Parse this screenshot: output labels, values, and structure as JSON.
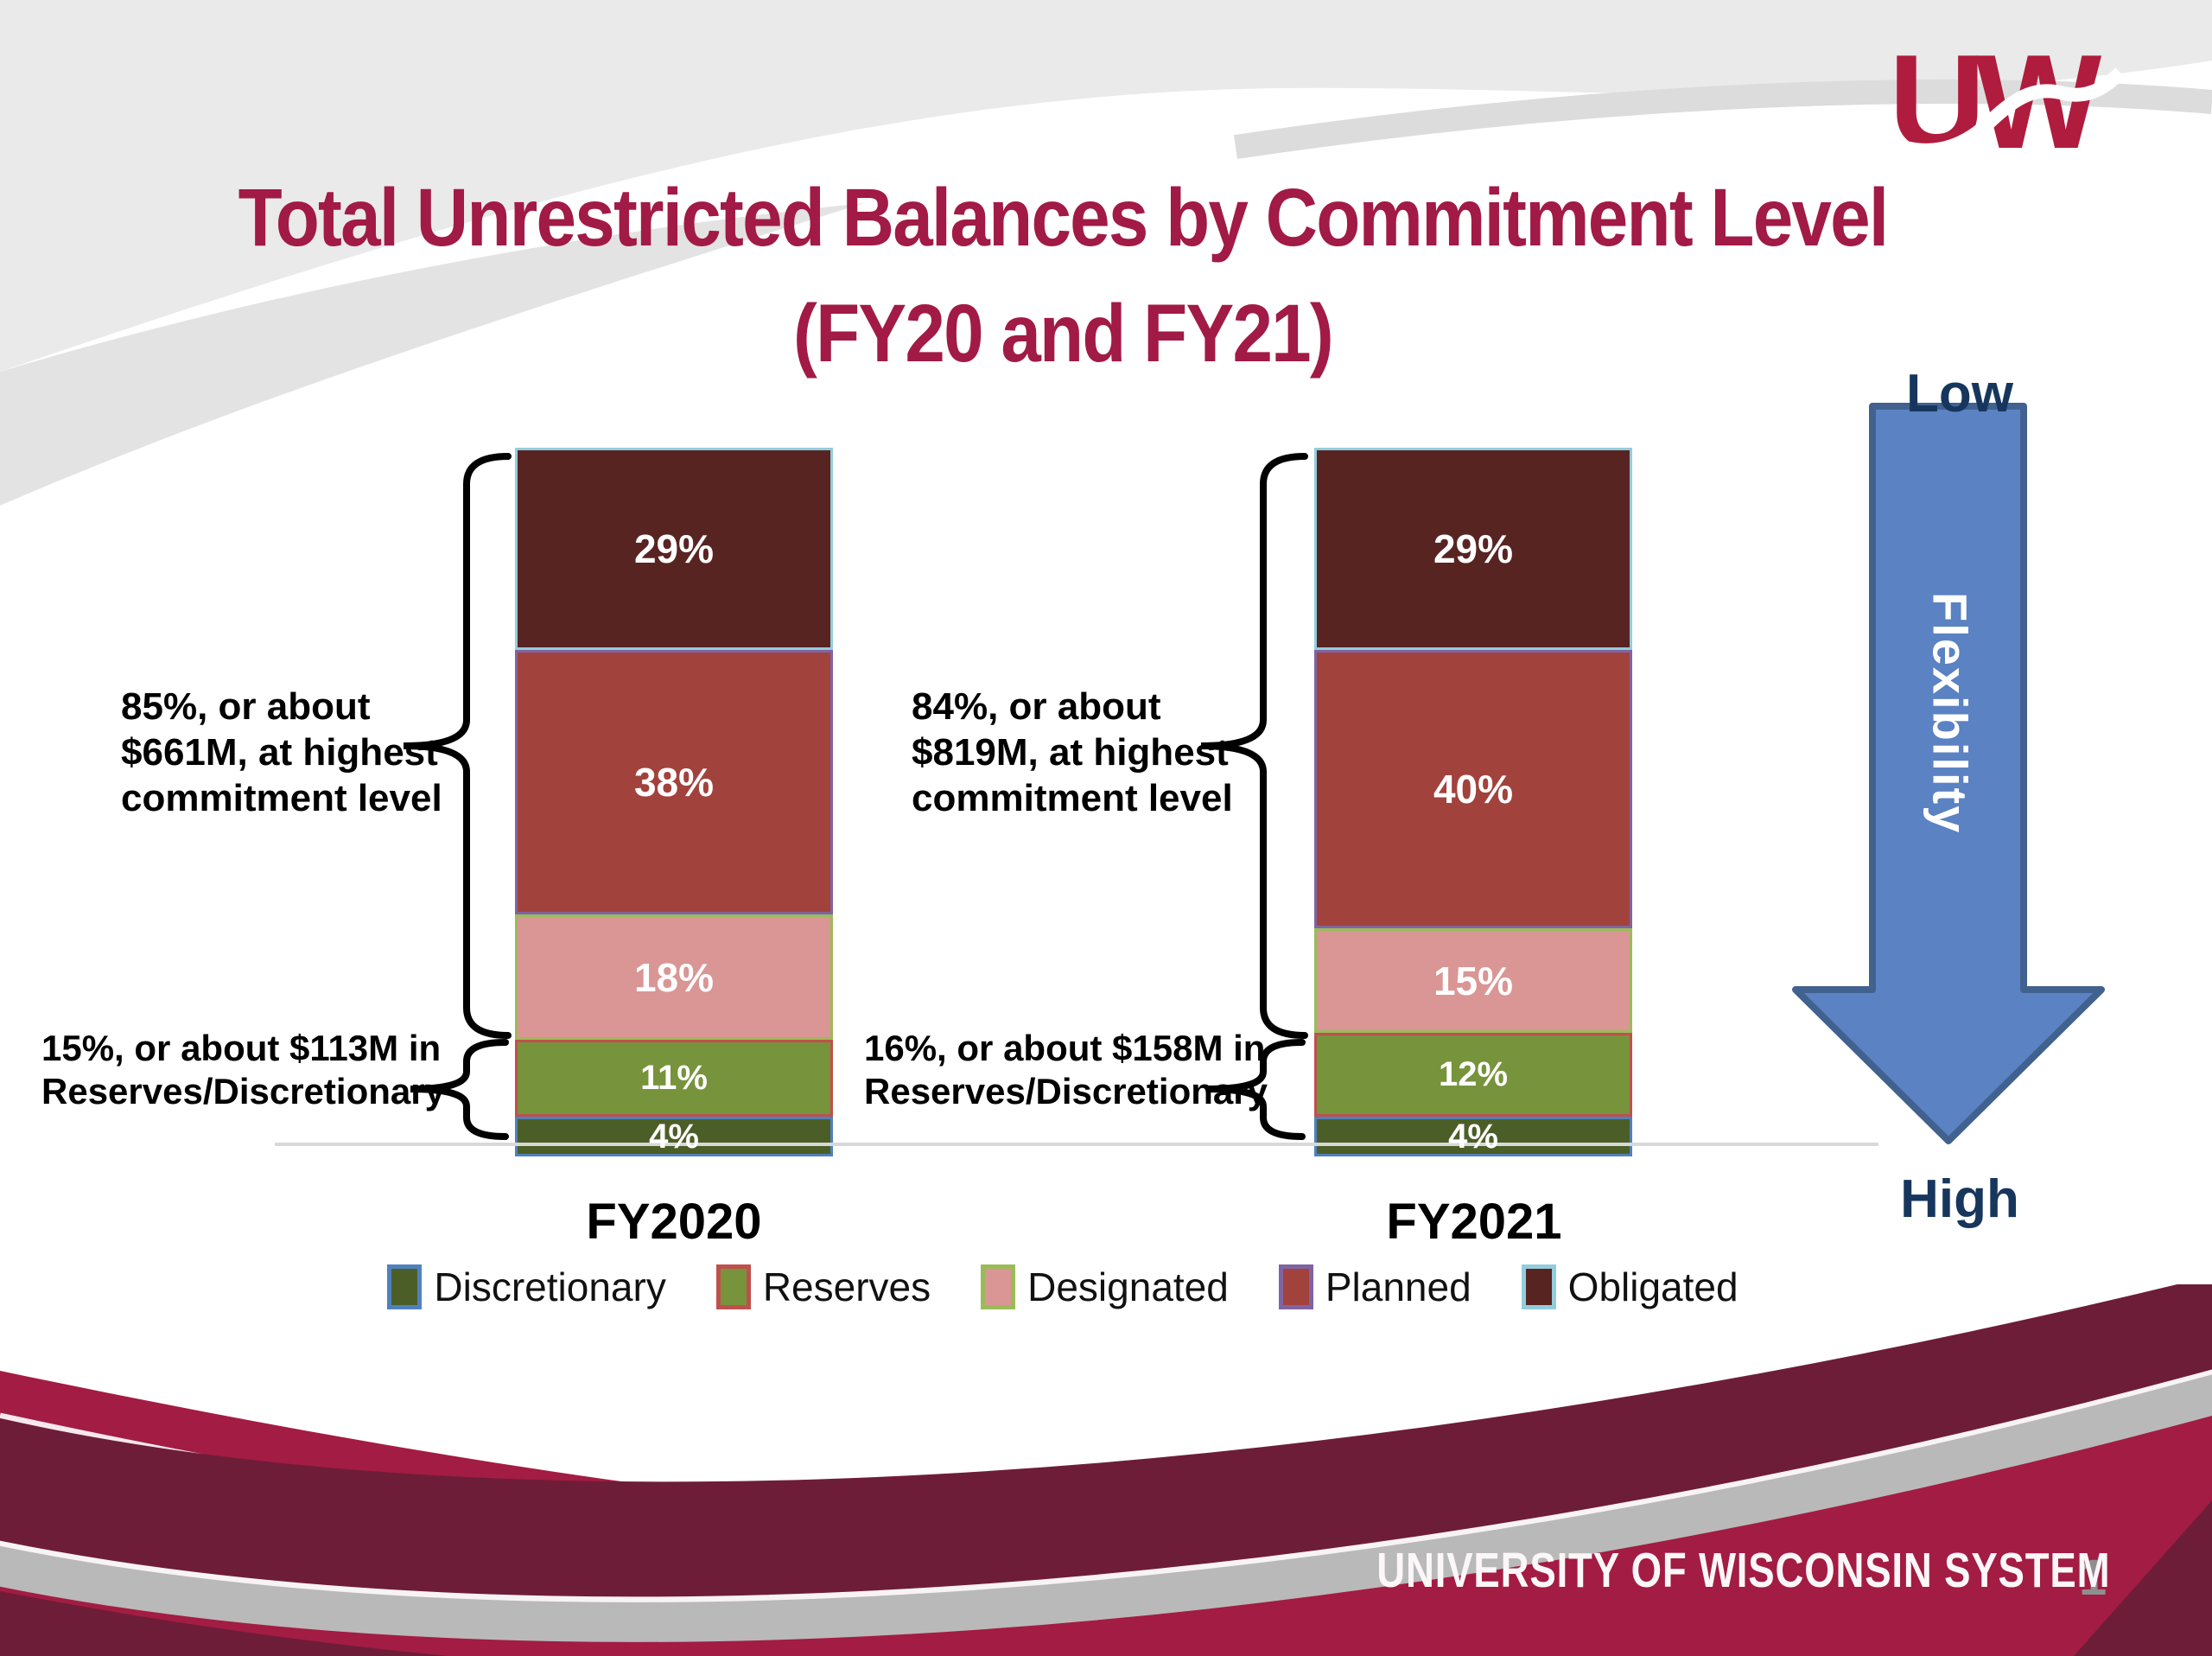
{
  "title": {
    "line1": "Total Unrestricted Balances by Commitment Level",
    "line2": "(FY20 and FY21)"
  },
  "logo": {
    "text": "UW"
  },
  "annotations": {
    "fy2020_top": {
      "line1": "85%, or about",
      "line2": "$661M, at highest",
      "line3": "commitment level"
    },
    "fy2020_bottom": {
      "line1": "15%, or about $113M in",
      "line2": "Reserves/Discretionary"
    },
    "fy2021_top": {
      "line1": "84%, or about",
      "line2": "$819M, at highest",
      "line3": "commitment level"
    },
    "fy2021_bottom": {
      "line1": "16%, or about $158M in",
      "line2": "Reserves/Discretionary"
    }
  },
  "chart_data": {
    "type": "bar",
    "subtype": "stacked-percent",
    "categories": [
      "FY2020",
      "FY2021"
    ],
    "series": [
      {
        "name": "Discretionary",
        "values": [
          4,
          4
        ],
        "fill": "#4c5e27",
        "border": "#4f81bd"
      },
      {
        "name": "Reserves",
        "values": [
          11,
          12
        ],
        "fill": "#77933c",
        "border": "#c0504d"
      },
      {
        "name": "Designated",
        "values": [
          18,
          15
        ],
        "fill": "#d99694",
        "border": "#9bbb59"
      },
      {
        "name": "Planned",
        "values": [
          38,
          40
        ],
        "fill": "#a2423d",
        "border": "#8064a2"
      },
      {
        "name": "Obligated",
        "values": [
          29,
          29
        ],
        "fill": "#582422",
        "border": "#92cddc"
      }
    ],
    "ylim": [
      0,
      100
    ],
    "unit": "%",
    "grid": false,
    "legend_position": "bottom",
    "value_labels": "percent shown inside each segment"
  },
  "arrow": {
    "top_label": "Low",
    "body_label": "Flexibility",
    "bottom_label": "High",
    "fill_color": "#5b82c2",
    "border_color": "#41618f",
    "label_color": "#17365d"
  },
  "footer": {
    "org_name": "UNIVERSITY OF WISCONSIN SYSTEM",
    "page_number": "1"
  },
  "colors": {
    "title": "#a21a46",
    "brand_crimson": "#a31c43",
    "brand_dark_maroon": "#6e1d39",
    "silver": "#b9b9b9"
  }
}
